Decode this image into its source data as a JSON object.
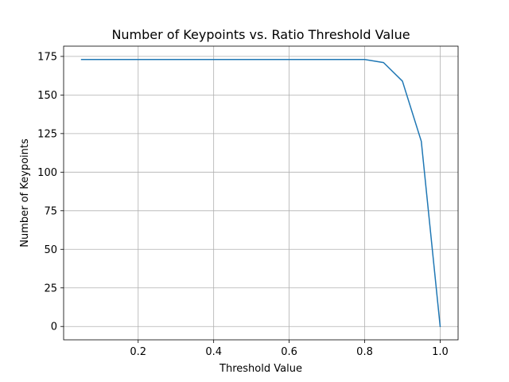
{
  "chart_data": {
    "type": "line",
    "title": "Number of Keypoints vs. Ratio Threshold Value",
    "xlabel": "Threshold Value",
    "ylabel": "Number of Keypoints",
    "xlim": [
      0.0025,
      1.0475
    ],
    "ylim": [
      -8.65,
      181.65
    ],
    "xticks": [
      0.2,
      0.4,
      0.6,
      0.8,
      1.0
    ],
    "xtick_labels": [
      "0.2",
      "0.4",
      "0.6",
      "0.8",
      "1.0"
    ],
    "yticks": [
      0,
      25,
      50,
      75,
      100,
      125,
      150,
      175
    ],
    "ytick_labels": [
      "0",
      "25",
      "50",
      "75",
      "100",
      "125",
      "150",
      "175"
    ],
    "grid": true,
    "series": [
      {
        "color": "#1f77b4",
        "x": [
          0.05,
          0.1,
          0.15,
          0.2,
          0.25,
          0.3,
          0.35,
          0.4,
          0.45,
          0.5,
          0.55,
          0.6,
          0.65,
          0.7,
          0.75,
          0.8,
          0.85,
          0.9,
          0.95,
          1.0
        ],
        "y": [
          173,
          173,
          173,
          173,
          173,
          173,
          173,
          173,
          173,
          173,
          173,
          173,
          173,
          173,
          173,
          173,
          171,
          159,
          120,
          0
        ]
      }
    ]
  }
}
